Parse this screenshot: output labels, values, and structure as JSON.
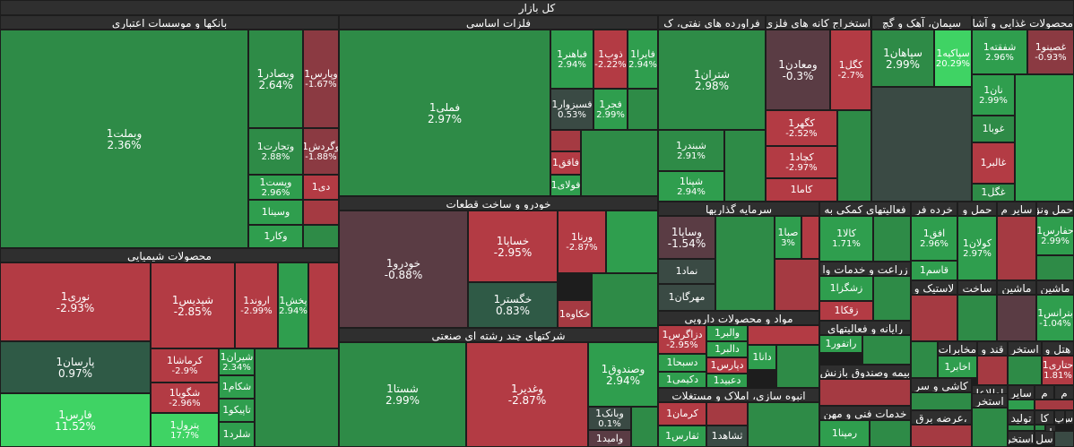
{
  "title": "کل بازار",
  "sectors": [
    {
      "key": "banks",
      "label": "بانکها و موسسات اعتباری"
    },
    {
      "key": "metals",
      "label": "فلزات اساسی"
    },
    {
      "key": "oil",
      "label": "فراورده های نفتی، ک"
    },
    {
      "key": "mining",
      "label": "استخراج کانه های فلزی"
    },
    {
      "key": "cement",
      "label": "سیمان، آهک و گچ"
    },
    {
      "key": "food",
      "label": "محصولات غذایی و آشا"
    },
    {
      "key": "chem",
      "label": "محصولات شیمیایی"
    },
    {
      "key": "auto",
      "label": "خودرو و ساخت قطعات"
    },
    {
      "key": "invest",
      "label": "سرمایه گذاریها"
    },
    {
      "key": "aux",
      "label": "فعالیتهای کمکی به"
    },
    {
      "key": "retail",
      "label": "خرده فر"
    },
    {
      "key": "transport",
      "label": "حمل و"
    },
    {
      "key": "other",
      "label": "سایر م"
    },
    {
      "key": "lease",
      "label": "حمل ونق"
    },
    {
      "key": "multi",
      "label": "شرکتهای چند رشته ای صنعتی"
    },
    {
      "key": "pharma",
      "label": "مواد و محصولات دارویی"
    },
    {
      "key": "agri",
      "label": "زراعت و خدمات وا"
    },
    {
      "key": "textile",
      "label": "لاستیک و"
    },
    {
      "key": "build",
      "label": "ساخت"
    },
    {
      "key": "machine",
      "label": "ماشین"
    },
    {
      "key": "machine2",
      "label": "ماشین"
    },
    {
      "key": "computer",
      "label": "رایانه و فعالیتهای"
    },
    {
      "key": "insurance",
      "label": "بیمه وصندوق بازنش"
    },
    {
      "key": "real",
      "label": "انبوه سازی، املاک و مستغلات"
    },
    {
      "key": "ceramic",
      "label": "کاشی و سر"
    },
    {
      "key": "tech",
      "label": "خدمات فنی و مهن"
    },
    {
      "key": "comm",
      "label": "مخابرات"
    },
    {
      "key": "sugar",
      "label": "قند و"
    },
    {
      "key": "extract",
      "label": "استخر"
    },
    {
      "key": "hotel",
      "label": "هتل و"
    },
    {
      "key": "info",
      "label": "اطلاعا"
    },
    {
      "key": "sayer",
      "label": "سایر"
    },
    {
      "key": "m1",
      "label": "م"
    },
    {
      "key": "m2",
      "label": "م"
    },
    {
      "key": "arze",
      "label": "،عرضه برق"
    },
    {
      "key": "extract2",
      "label": "استخر"
    },
    {
      "key": "tolid",
      "label": "تولید"
    },
    {
      "key": "kh",
      "label": "کا"
    },
    {
      "key": "extract3",
      "label": "استخر"
    },
    {
      "key": "sp",
      "label": "س"
    },
    {
      "key": "sp2",
      "label": "پ"
    },
    {
      "key": "sp3",
      "label": "ا"
    },
    {
      "key": "sl",
      "label": "سل"
    },
    {
      "key": "trade",
      "label": "حمل و"
    }
  ],
  "tiles": [
    {
      "sym": "وبملت1",
      "chg": "2.36%"
    },
    {
      "sym": "وبصادر1",
      "chg": "2.64%"
    },
    {
      "sym": "وپارس1",
      "chg": "-1.67%"
    },
    {
      "sym": "وتجارت1",
      "chg": "2.88%"
    },
    {
      "sym": "وگردش1",
      "chg": "-1.88%"
    },
    {
      "sym": "وپست1",
      "chg": "2.96%"
    },
    {
      "sym": "دی1",
      "chg": ""
    },
    {
      "sym": "وسینا1",
      "chg": ""
    },
    {
      "sym": "وکار1",
      "chg": ""
    },
    {
      "sym": "فملی1",
      "chg": "2.97%"
    },
    {
      "sym": "فباهنر1",
      "chg": "2.94%"
    },
    {
      "sym": "ذوب1",
      "chg": "-2.22%"
    },
    {
      "sym": "فایرا1",
      "chg": "2.94%"
    },
    {
      "sym": "فسبزوار1",
      "chg": "0.53%"
    },
    {
      "sym": "فجر1",
      "chg": "2.99%"
    },
    {
      "sym": "فاقق1",
      "chg": ""
    },
    {
      "sym": "فولای1",
      "chg": ""
    },
    {
      "sym": "شتران1",
      "chg": "2.98%"
    },
    {
      "sym": "شبندر1",
      "chg": "2.91%"
    },
    {
      "sym": "شپنا1",
      "chg": "2.94%"
    },
    {
      "sym": "ومعادن1",
      "chg": "-0.3%"
    },
    {
      "sym": "کگل1",
      "chg": "-2.7%"
    },
    {
      "sym": "کگهر1",
      "chg": "-2.52%"
    },
    {
      "sym": "کچاد1",
      "chg": "-2.97%"
    },
    {
      "sym": "کاما1",
      "chg": ""
    },
    {
      "sym": "سپاهان1",
      "chg": "2.99%"
    },
    {
      "sym": "سپاکیه1",
      "chg": "20.29%"
    },
    {
      "sym": "شفقته1",
      "chg": "2.96%"
    },
    {
      "sym": "غصینو1",
      "chg": "-0.93%"
    },
    {
      "sym": "نان1",
      "chg": "2.99%"
    },
    {
      "sym": "غوبا1",
      "chg": ""
    },
    {
      "sym": "غالبر1",
      "chg": ""
    },
    {
      "sym": "غگل1",
      "chg": ""
    },
    {
      "sym": "نوری1",
      "chg": "-2.93%"
    },
    {
      "sym": "شپدیس1",
      "chg": "-2.85%"
    },
    {
      "sym": "اروند1",
      "chg": "-2.99%"
    },
    {
      "sym": "پخش1",
      "chg": "2.94%"
    },
    {
      "sym": "پارسان1",
      "chg": "0.97%"
    },
    {
      "sym": "کرماشا1",
      "chg": "-2.9%"
    },
    {
      "sym": "شیران1",
      "chg": "2.34%"
    },
    {
      "sym": "شکام1",
      "chg": ""
    },
    {
      "sym": "شگویا1",
      "chg": "-2.96%"
    },
    {
      "sym": "تاپیکو1",
      "chg": ""
    },
    {
      "sym": "فارس1",
      "chg": "11.52%"
    },
    {
      "sym": "پترول1",
      "chg": "17.7%"
    },
    {
      "sym": "شلرد1",
      "chg": ""
    },
    {
      "sym": "خودرو1",
      "chg": "-0.88%"
    },
    {
      "sym": "خساپا1",
      "chg": "-2.95%"
    },
    {
      "sym": "ورنا1",
      "chg": "-2.87%"
    },
    {
      "sym": "خگستر1",
      "chg": "0.83%"
    },
    {
      "sym": "خکاوه1",
      "chg": ""
    },
    {
      "sym": "وساپا1",
      "chg": "-1.54%"
    },
    {
      "sym": "صبا1",
      "chg": "3%"
    },
    {
      "sym": "نماد1",
      "chg": ""
    },
    {
      "sym": "مهرگان1",
      "chg": ""
    },
    {
      "sym": "کالا1",
      "chg": "1.71%"
    },
    {
      "sym": "افق1",
      "chg": "2.96%"
    },
    {
      "sym": "کولان1",
      "chg": "2.97%"
    },
    {
      "sym": "حفارس1",
      "chg": "2.99%"
    },
    {
      "sym": "قاسم1",
      "chg": ""
    },
    {
      "sym": "زشگزا1",
      "chg": ""
    },
    {
      "sym": "زقکا1",
      "chg": ""
    },
    {
      "sym": "بترانس1",
      "chg": "-1.04%"
    },
    {
      "sym": "شستا1",
      "chg": "2.99%"
    },
    {
      "sym": "وغدیر1",
      "chg": "-2.87%"
    },
    {
      "sym": "وصندوق1",
      "chg": "2.94%"
    },
    {
      "sym": "وبانک1",
      "chg": "0.1%"
    },
    {
      "sym": "وامید1",
      "chg": ""
    },
    {
      "sym": "دزاگرس1",
      "chg": "-2.95%"
    },
    {
      "sym": "دسبحا1",
      "chg": ""
    },
    {
      "sym": "دکیمی1",
      "chg": ""
    },
    {
      "sym": "والبر1",
      "chg": ""
    },
    {
      "sym": "دالبر1",
      "chg": ""
    },
    {
      "sym": "دپارس1",
      "chg": ""
    },
    {
      "sym": "دعبید1",
      "chg": ""
    },
    {
      "sym": "دانا1",
      "chg": ""
    },
    {
      "sym": "راتفور1",
      "chg": ""
    },
    {
      "sym": "اخابر1",
      "chg": ""
    },
    {
      "sym": "حتاری1",
      "chg": "1.81%"
    },
    {
      "sym": "کرمان1",
      "chg": ""
    },
    {
      "sym": "ثفارس1",
      "chg": ""
    },
    {
      "sym": "ثشاهد1",
      "chg": ""
    },
    {
      "sym": "رمپنا1",
      "chg": ""
    }
  ],
  "colors": {
    "strong_green": "#3fd364",
    "green": "#2f9e4e",
    "red": "#b33b44",
    "dark_red": "#8b3a42",
    "neutral_dark": "#3a4a44",
    "header_bg": "#2f2f2f"
  }
}
